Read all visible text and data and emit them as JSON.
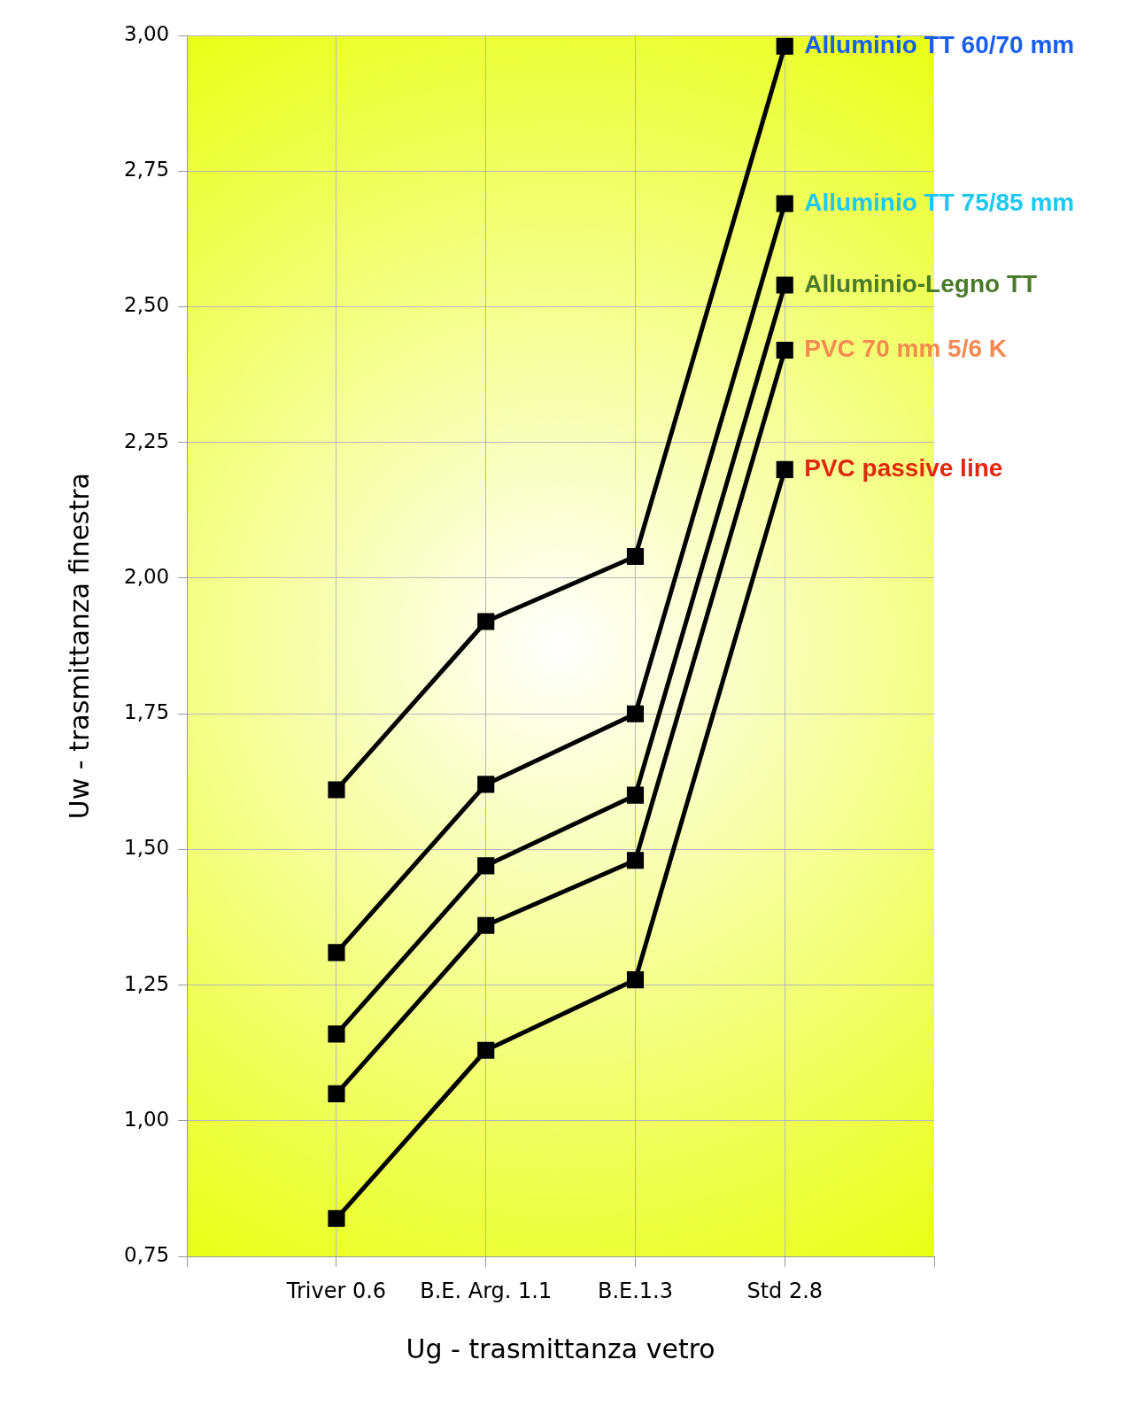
{
  "chart_data": {
    "type": "line",
    "xlabel": "Ug - trasmittanza vetro",
    "ylabel": "Uw - trasmittanza finestra",
    "categories": [
      "Triver 0.6",
      "B.E. Arg. 1.1",
      "B.E.1.3",
      "Std 2.8"
    ],
    "ylim": [
      0.75,
      3.0
    ],
    "yticks": [
      {
        "value": 0.75,
        "label": "0,75"
      },
      {
        "value": 1.0,
        "label": "1,00"
      },
      {
        "value": 1.25,
        "label": "1,25"
      },
      {
        "value": 1.5,
        "label": "1,50"
      },
      {
        "value": 1.75,
        "label": "1,75"
      },
      {
        "value": 2.0,
        "label": "2,00"
      },
      {
        "value": 2.25,
        "label": "2,25"
      },
      {
        "value": 2.5,
        "label": "2,50"
      },
      {
        "value": 2.75,
        "label": "2,75"
      },
      {
        "value": 3.0,
        "label": "3,00"
      }
    ],
    "grid": true,
    "legend": false,
    "marker": "square",
    "line_style": "solid",
    "series": [
      {
        "name": "Alluminio TT 60/70 mm",
        "color": "#000000",
        "values": [
          1.61,
          1.92,
          2.04,
          2.98
        ]
      },
      {
        "name": "Alluminio TT 75/85 mm",
        "color": "#000000",
        "values": [
          1.31,
          1.62,
          1.75,
          2.69
        ]
      },
      {
        "name": "Alluminio-Legno TT",
        "color": "#000000",
        "values": [
          1.16,
          1.47,
          1.6,
          2.54
        ]
      },
      {
        "name": "PVC 70 mm 5/6 K",
        "color": "#000000",
        "values": [
          1.05,
          1.36,
          1.48,
          2.42
        ]
      },
      {
        "name": "PVC passive line",
        "color": "#000000",
        "values": [
          0.82,
          1.13,
          1.26,
          2.2
        ]
      }
    ]
  }
}
